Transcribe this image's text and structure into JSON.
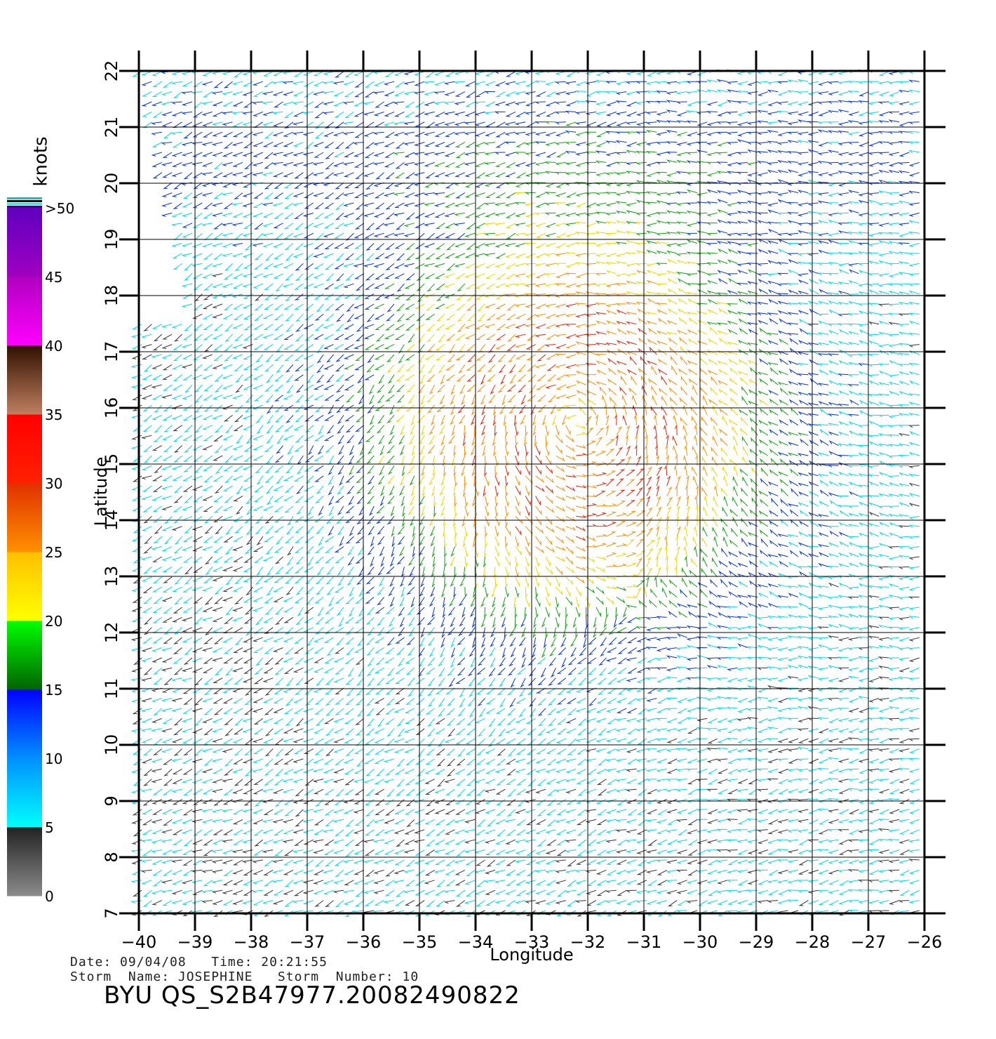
{
  "chart_data": {
    "type": "vector-field",
    "xlabel": "Longitude",
    "ylabel": "Latitude",
    "xlim": [
      -40,
      -26
    ],
    "ylim": [
      7,
      22
    ],
    "x_ticks": [
      -40,
      -39,
      -38,
      -37,
      -36,
      -35,
      -34,
      -33,
      -32,
      -31,
      -30,
      -29,
      -28,
      -27,
      -26
    ],
    "y_ticks": [
      7,
      8,
      9,
      10,
      11,
      12,
      13,
      14,
      15,
      16,
      17,
      18,
      19,
      20,
      21,
      22
    ],
    "grid": true,
    "colorbar": {
      "units": "knots",
      "tick_labels": [
        "0",
        "5",
        "10",
        "15",
        "20",
        "25",
        "30",
        "35",
        "40",
        "45",
        ">50"
      ],
      "bands": [
        {
          "from": 0,
          "to": 5,
          "colors": [
            "#8c8c8c",
            "#222222"
          ]
        },
        {
          "from": 5,
          "to": 10,
          "colors": [
            "#00ffff",
            "#0090ff"
          ]
        },
        {
          "from": 10,
          "to": 15,
          "colors": [
            "#0090ff",
            "#0000ff"
          ]
        },
        {
          "from": 15,
          "to": 20,
          "colors": [
            "#006400",
            "#00ff00"
          ]
        },
        {
          "from": 20,
          "to": 25,
          "colors": [
            "#ffff00",
            "#ffc000"
          ]
        },
        {
          "from": 25,
          "to": 30,
          "colors": [
            "#ff9000",
            "#e03000"
          ]
        },
        {
          "from": 30,
          "to": 35,
          "colors": [
            "#ff2000",
            "#ff0000"
          ]
        },
        {
          "from": 35,
          "to": 40,
          "colors": [
            "#c08060",
            "#301000"
          ]
        },
        {
          "from": 40,
          "to": 45,
          "colors": [
            "#ff00ff",
            "#b000c0"
          ]
        },
        {
          "from": 45,
          "to": 50,
          "colors": [
            "#a000c0",
            "#6000c0"
          ]
        }
      ]
    },
    "storm_center": {
      "lon": -32.2,
      "lat": 15.8
    }
  },
  "footer": {
    "date_time": "Date: 09/04/08   Time: 20:21:55",
    "storm": "Storm  Name: JOSEPHINE   Storm  Number: 10",
    "title": "BYU  QS_S2B47977.20082490822"
  }
}
